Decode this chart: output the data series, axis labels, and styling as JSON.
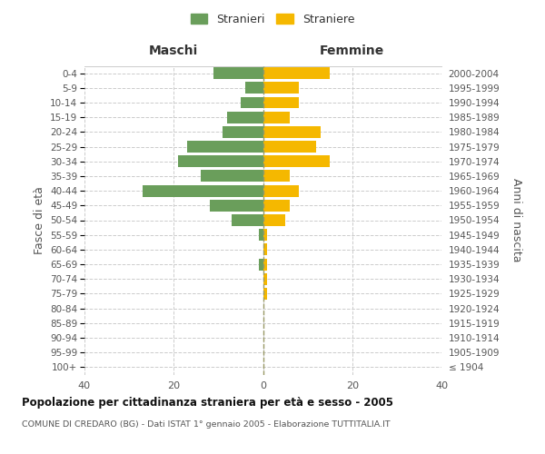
{
  "age_groups": [
    "100+",
    "95-99",
    "90-94",
    "85-89",
    "80-84",
    "75-79",
    "70-74",
    "65-69",
    "60-64",
    "55-59",
    "50-54",
    "45-49",
    "40-44",
    "35-39",
    "30-34",
    "25-29",
    "20-24",
    "15-19",
    "10-14",
    "5-9",
    "0-4"
  ],
  "birth_years": [
    "≤ 1904",
    "1905-1909",
    "1910-1914",
    "1915-1919",
    "1920-1924",
    "1925-1929",
    "1930-1934",
    "1935-1939",
    "1940-1944",
    "1945-1949",
    "1950-1954",
    "1955-1959",
    "1960-1964",
    "1965-1969",
    "1970-1974",
    "1975-1979",
    "1980-1984",
    "1985-1989",
    "1990-1994",
    "1995-1999",
    "2000-2004"
  ],
  "maschi": [
    0,
    0,
    0,
    0,
    0,
    0,
    0,
    1,
    0,
    1,
    7,
    12,
    27,
    14,
    19,
    17,
    9,
    8,
    5,
    4,
    11
  ],
  "femmine": [
    0,
    0,
    0,
    0,
    0,
    1,
    1,
    1,
    1,
    1,
    5,
    6,
    8,
    6,
    15,
    12,
    13,
    6,
    8,
    8,
    15
  ],
  "maschi_color": "#6a9e5b",
  "femmine_color": "#f5b800",
  "background_color": "#ffffff",
  "grid_color": "#cccccc",
  "title": "Popolazione per cittadinanza straniera per età e sesso - 2005",
  "subtitle": "COMUNE DI CREDARO (BG) - Dati ISTAT 1° gennaio 2005 - Elaborazione TUTTITALIA.IT",
  "ylabel_left": "Fasce di età",
  "ylabel_right": "Anni di nascita",
  "xlabel_maschi": "Maschi",
  "xlabel_femmine": "Femmine",
  "legend_maschi": "Stranieri",
  "legend_femmine": "Straniere",
  "xlim": 40,
  "bar_height": 0.8
}
